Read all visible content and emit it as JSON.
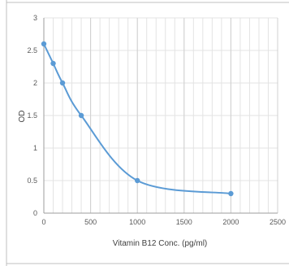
{
  "chart_data": {
    "type": "scatter",
    "title": "",
    "xlabel": "Vitamin B12 Conc. (pg/ml)",
    "ylabel": "OD",
    "xlim": [
      0,
      2500
    ],
    "ylim": [
      0,
      3
    ],
    "x_ticks": [
      0,
      500,
      1000,
      1500,
      2000,
      2500
    ],
    "y_ticks": [
      0,
      0.5,
      1,
      1.5,
      2,
      2.5,
      3
    ],
    "x_tick_labels": [
      "0",
      "500",
      "1000",
      "1500",
      "2000",
      "2500"
    ],
    "y_tick_labels": [
      "0",
      "0.5",
      "1",
      "1.5",
      "2",
      "2.5",
      "3"
    ],
    "grid": true,
    "legend": "none",
    "series": [
      {
        "x": [
          0,
          100,
          200,
          400,
          1000,
          2000
        ],
        "y": [
          2.6,
          2.3,
          2.0,
          1.5,
          0.5,
          0.3
        ],
        "color": "#5b9bd5",
        "smooth": true
      }
    ]
  }
}
